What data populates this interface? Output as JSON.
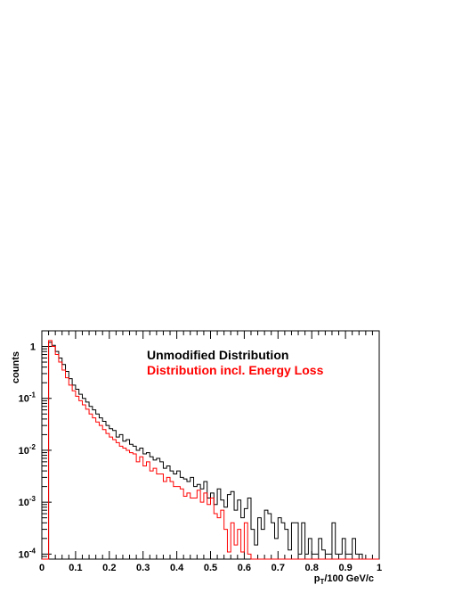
{
  "chart_data": {
    "type": "line",
    "title": "",
    "xlabel_main": "p",
    "xlabel_sub": "T",
    "xlabel_rest": "/100 GeV/c",
    "ylabel": "counts",
    "xlim": [
      0,
      1
    ],
    "ylim": [
      8e-05,
      2.0
    ],
    "yscale": "log",
    "grid": false,
    "legend_placement": "top-center",
    "x_ticks": [
      {
        "value": 0,
        "label": "0"
      },
      {
        "value": 0.1,
        "label": "0.1"
      },
      {
        "value": 0.2,
        "label": "0.2"
      },
      {
        "value": 0.3,
        "label": "0.3"
      },
      {
        "value": 0.4,
        "label": "0.4"
      },
      {
        "value": 0.5,
        "label": "0.5"
      },
      {
        "value": 0.6,
        "label": "0.6"
      },
      {
        "value": 0.7,
        "label": "0.7"
      },
      {
        "value": 0.8,
        "label": "0.8"
      },
      {
        "value": 0.9,
        "label": "0.9"
      },
      {
        "value": 1,
        "label": "1"
      }
    ],
    "y_ticks": [
      {
        "value": 1,
        "base": "1",
        "exp": ""
      },
      {
        "value": 0.1,
        "base": "10",
        "exp": "-1"
      },
      {
        "value": 0.01,
        "base": "10",
        "exp": "-2"
      },
      {
        "value": 0.001,
        "base": "10",
        "exp": "-3"
      },
      {
        "value": 0.0001,
        "base": "10",
        "exp": "-4"
      }
    ],
    "bin_width": 0.01,
    "series": [
      {
        "name": "Unmodified Distribution",
        "color": "#000000",
        "x": [
          0.0,
          0.01,
          0.02,
          0.03,
          0.04,
          0.05,
          0.06,
          0.07,
          0.08,
          0.09,
          0.1,
          0.11,
          0.12,
          0.13,
          0.14,
          0.15,
          0.16,
          0.17,
          0.18,
          0.19,
          0.2,
          0.21,
          0.22,
          0.23,
          0.24,
          0.25,
          0.26,
          0.27,
          0.28,
          0.29,
          0.3,
          0.31,
          0.32,
          0.33,
          0.34,
          0.35,
          0.36,
          0.37,
          0.38,
          0.39,
          0.4,
          0.41,
          0.42,
          0.43,
          0.44,
          0.45,
          0.46,
          0.47,
          0.48,
          0.49,
          0.5,
          0.51,
          0.52,
          0.53,
          0.54,
          0.55,
          0.56,
          0.57,
          0.58,
          0.59,
          0.6,
          0.61,
          0.62,
          0.63,
          0.64,
          0.65,
          0.66,
          0.67,
          0.68,
          0.69,
          0.7,
          0.71,
          0.72,
          0.73,
          0.74,
          0.75,
          0.76,
          0.77,
          0.78,
          0.79,
          0.8,
          0.81,
          0.82,
          0.83,
          0.84,
          0.85,
          0.86,
          0.87,
          0.88,
          0.89,
          0.9,
          0.91,
          0.92,
          0.93,
          0.94,
          0.95,
          0.96,
          0.97,
          0.98,
          0.99
        ],
        "y": [
          0,
          8e-05,
          1.2,
          1.05,
          0.8,
          0.6,
          0.45,
          0.33,
          0.24,
          0.18,
          0.15,
          0.12,
          0.1,
          0.085,
          0.07,
          0.06,
          0.05,
          0.042,
          0.036,
          0.03,
          0.026,
          0.024,
          0.018,
          0.02,
          0.015,
          0.016,
          0.013,
          0.012,
          0.01,
          0.011,
          0.0085,
          0.009,
          0.0075,
          0.0065,
          0.007,
          0.006,
          0.0045,
          0.005,
          0.004,
          0.0035,
          0.004,
          0.003,
          0.0028,
          0.0025,
          0.003,
          0.002,
          0.0022,
          0.0018,
          0.0025,
          0.0012,
          0.0015,
          0.0009,
          0.0018,
          0.0011,
          0.0008,
          0.0014,
          0.0016,
          0.0007,
          0.0011,
          0.0005,
          0.00075,
          0.0012,
          0.0003,
          0.00015,
          0.0005,
          0.0003,
          0.0007,
          0.0006,
          0.0004,
          0.0002,
          0.0005,
          0.0004,
          0.0003,
          0.00012,
          0.0004,
          0.0004,
          0.0001,
          0.0004,
          0.0001,
          0.0002,
          0.0001,
          0.0001,
          0.0002,
          0.00012,
          0.0001,
          0.0001,
          0.0004,
          0.0001,
          0.0001,
          0.0002,
          0.0001,
          0.0001,
          0.0002,
          0.0001,
          0.0001,
          0,
          0,
          0,
          0,
          0
        ]
      },
      {
        "name": "Distribution incl. Energy Loss",
        "color": "#ff0000",
        "x": [
          0.0,
          0.01,
          0.02,
          0.03,
          0.04,
          0.05,
          0.06,
          0.07,
          0.08,
          0.09,
          0.1,
          0.11,
          0.12,
          0.13,
          0.14,
          0.15,
          0.16,
          0.17,
          0.18,
          0.19,
          0.2,
          0.21,
          0.22,
          0.23,
          0.24,
          0.25,
          0.26,
          0.27,
          0.28,
          0.29,
          0.3,
          0.31,
          0.32,
          0.33,
          0.34,
          0.35,
          0.36,
          0.37,
          0.38,
          0.39,
          0.4,
          0.41,
          0.42,
          0.43,
          0.44,
          0.45,
          0.46,
          0.47,
          0.48,
          0.49,
          0.5,
          0.51,
          0.52,
          0.53,
          0.54,
          0.55,
          0.56,
          0.57,
          0.58,
          0.59,
          0.6,
          0.61,
          0.62,
          0.63,
          0.64,
          0.65,
          0.66,
          0.67,
          0.68,
          0.69,
          0.7,
          0.71,
          0.72,
          0.73,
          0.74,
          0.75,
          0.76,
          0.77,
          0.78,
          0.79,
          0.8,
          0.81,
          0.82,
          0.83,
          0.84,
          0.85,
          0.86,
          0.87,
          0.88,
          0.89,
          0.9,
          0.91,
          0.92,
          0.93,
          0.94,
          0.95,
          0.96,
          0.97,
          0.98,
          0.99
        ],
        "y": [
          0,
          8e-05,
          1.3,
          1.0,
          0.7,
          0.5,
          0.35,
          0.25,
          0.18,
          0.14,
          0.11,
          0.09,
          0.075,
          0.062,
          0.05,
          0.042,
          0.035,
          0.03,
          0.025,
          0.021,
          0.018,
          0.016,
          0.014,
          0.012,
          0.011,
          0.01,
          0.009,
          0.0085,
          0.006,
          0.0075,
          0.005,
          0.006,
          0.004,
          0.0045,
          0.0035,
          0.0035,
          0.0025,
          0.003,
          0.0025,
          0.002,
          0.002,
          0.0018,
          0.0013,
          0.0015,
          0.0012,
          0.0012,
          0.0017,
          0.001,
          0.0015,
          0.0009,
          0.0012,
          0.0006,
          0.0005,
          0.0007,
          0.0003,
          0.00011,
          0.0004,
          0.00015,
          0.0003,
          0.00011,
          0.0004,
          0.0001,
          0,
          0,
          0,
          0,
          0,
          0,
          0,
          0,
          0,
          0,
          0,
          0,
          0,
          0,
          0,
          0,
          0,
          0,
          0,
          0,
          0,
          0,
          0,
          0,
          0,
          0,
          0,
          0,
          0,
          0,
          0,
          0,
          0,
          0,
          0,
          0,
          0,
          0
        ]
      }
    ]
  }
}
